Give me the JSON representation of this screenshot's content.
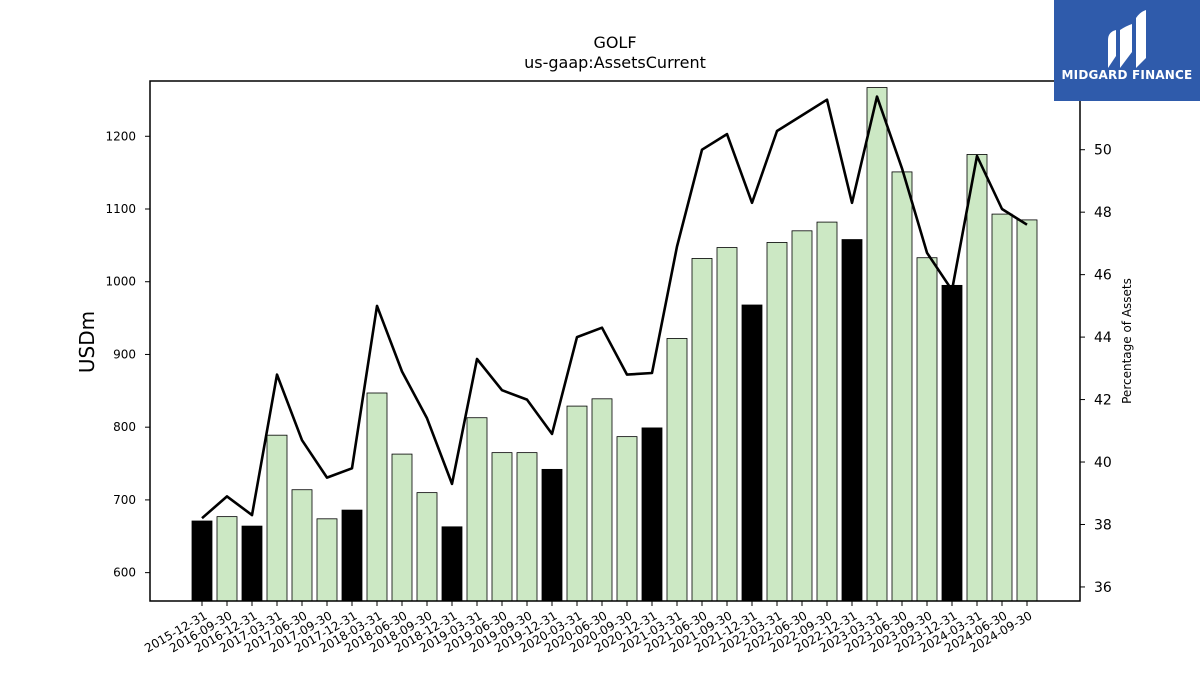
{
  "chart_data": {
    "type": "bar",
    "title": "GOLF",
    "subtitle": "us-gaap:AssetsCurrent",
    "ylabel": "USDm",
    "y2label": "Percentage of Assets",
    "ylim": [
      561,
      1276
    ],
    "y2lim": [
      35.55,
      52.2
    ],
    "yticks": [
      600,
      700,
      800,
      900,
      1000,
      1100,
      1200
    ],
    "y2ticks": [
      36,
      38,
      40,
      42,
      44,
      46,
      48,
      50
    ],
    "categories": [
      "2015-12-31",
      "2016-09-30",
      "2016-12-31",
      "2017-03-31",
      "2017-06-30",
      "2017-09-30",
      "2017-12-31",
      "2018-03-31",
      "2018-06-30",
      "2018-09-30",
      "2018-12-31",
      "2019-03-31",
      "2019-06-30",
      "2019-09-30",
      "2019-12-31",
      "2020-03-31",
      "2020-06-30",
      "2020-09-30",
      "2020-12-31",
      "2021-03-31",
      "2021-06-30",
      "2021-09-30",
      "2021-12-31",
      "2022-03-31",
      "2022-06-30",
      "2022-09-30",
      "2022-12-31",
      "2023-03-31",
      "2023-06-30",
      "2023-09-30",
      "2023-12-31",
      "2024-03-31",
      "2024-06-30",
      "2024-09-30"
    ],
    "series": [
      {
        "values": [
          671,
          677,
          664,
          789,
          714,
          674,
          686,
          847,
          763,
          710,
          663,
          813,
          765,
          765,
          742,
          829,
          839,
          787,
          799,
          922,
          1032,
          1047,
          968,
          1054,
          1070,
          1082,
          1058,
          1267,
          1151,
          1033,
          995,
          1175,
          1093,
          1085
        ],
        "fiscal_year_end": [
          true,
          false,
          true,
          false,
          false,
          false,
          true,
          false,
          false,
          false,
          true,
          false,
          false,
          false,
          true,
          false,
          false,
          false,
          true,
          false,
          false,
          false,
          true,
          false,
          false,
          false,
          true,
          false,
          false,
          false,
          true,
          false,
          false,
          false
        ]
      },
      {
        "type": "line",
        "axis": "right",
        "values": [
          38.2,
          38.9,
          38.3,
          42.8,
          40.7,
          39.5,
          39.8,
          45.0,
          42.9,
          41.4,
          39.3,
          43.3,
          42.3,
          42.0,
          40.9,
          44.0,
          44.3,
          42.8,
          42.85,
          46.9,
          50.0,
          50.5,
          48.3,
          50.6,
          51.1,
          51.6,
          48.3,
          51.7,
          49.4,
          46.7,
          45.5,
          49.8,
          48.1,
          47.6
        ]
      }
    ],
    "colors": {
      "fiscal_bar": "#000000",
      "quarter_bar": "#cce8c4",
      "bar_edge": "#000000",
      "line": "#000000"
    },
    "grid": false,
    "legend": "none"
  },
  "logo": {
    "text": "MIDGARD FINANCE",
    "icon": "midgard-logo-icon"
  }
}
